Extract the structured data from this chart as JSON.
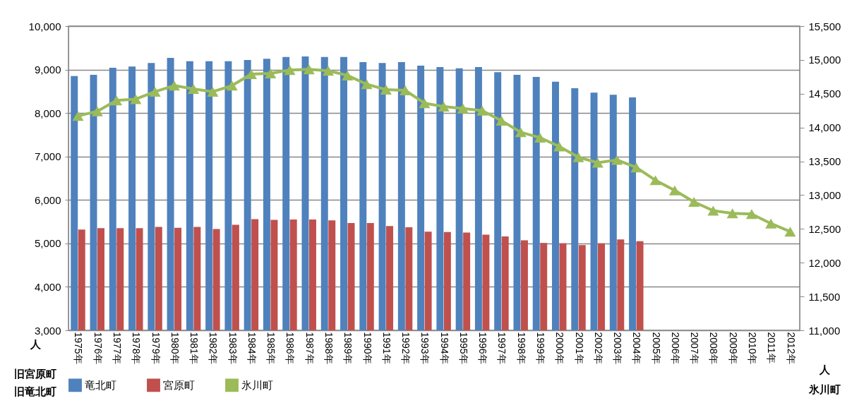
{
  "chart_data": {
    "type": "bar",
    "ylabel": "人",
    "y2label": "人",
    "annotations": [
      "旧宮原町",
      "旧竜北町",
      "氷川町"
    ],
    "categories": [
      "1975年",
      "1976年",
      "1977年",
      "1978年",
      "1979年",
      "1980年",
      "1981年",
      "1982年",
      "1983年",
      "1984年",
      "1985年",
      "1986年",
      "1987年",
      "1988年",
      "1989年",
      "1990年",
      "1991年",
      "1992年",
      "1993年",
      "1994年",
      "1995年",
      "1996年",
      "1997年",
      "1998年",
      "1999年",
      "2000年",
      "2001年",
      "2002年",
      "2003年",
      "2004年",
      "2005年",
      "2006年",
      "2007年",
      "2008年",
      "2009年",
      "2010年",
      "2011年",
      "2012年"
    ],
    "series": [
      {
        "name": "竜北町",
        "color": "#4f81bd",
        "values": [
          8850,
          8880,
          9040,
          9070,
          9150,
          9270,
          9190,
          9190,
          9190,
          9220,
          9250,
          9290,
          9300,
          9290,
          9290,
          9170,
          9150,
          9170,
          9090,
          9060,
          9030,
          9060,
          8940,
          8880,
          8830,
          8720,
          8570,
          8470,
          8420,
          8360,
          null,
          null,
          null,
          null,
          null,
          null,
          null,
          null
        ]
      },
      {
        "name": "宮原町",
        "color": "#c0504d",
        "values": [
          5320,
          5350,
          5350,
          5350,
          5380,
          5360,
          5380,
          5330,
          5430,
          5560,
          5540,
          5550,
          5550,
          5530,
          5470,
          5470,
          5400,
          5370,
          5270,
          5260,
          5250,
          5200,
          5160,
          5070,
          5010,
          5000,
          4960,
          5000,
          5090,
          5050,
          null,
          null,
          null,
          null,
          null,
          null,
          null,
          null
        ]
      },
      {
        "name": "氷川町",
        "type": "line",
        "axis": "y2",
        "color": "#9bbb59",
        "marker": "triangle",
        "values": [
          14170,
          14240,
          14400,
          14420,
          14530,
          14620,
          14570,
          14530,
          14620,
          14790,
          14800,
          14850,
          14860,
          14840,
          14770,
          14640,
          14560,
          14550,
          14360,
          14310,
          14280,
          14250,
          14100,
          13930,
          13850,
          13720,
          13560,
          13480,
          13520,
          13410,
          13220,
          13070,
          12900,
          12770,
          12730,
          12720,
          12580,
          12460
        ]
      }
    ],
    "ylim": [
      3000,
      10000
    ],
    "yticks": [
      {
        "value": 3000,
        "label": "3,000"
      },
      {
        "value": 4000,
        "label": "4,000"
      },
      {
        "value": 5000,
        "label": "5,000"
      },
      {
        "value": 6000,
        "label": "6,000"
      },
      {
        "value": 7000,
        "label": "7,000"
      },
      {
        "value": 8000,
        "label": "8,000"
      },
      {
        "value": 9000,
        "label": "9,000"
      },
      {
        "value": 10000,
        "label": "10,000"
      }
    ],
    "y2lim": [
      11000,
      15500
    ],
    "y2ticks": [
      {
        "value": 11000,
        "label": "11,000"
      },
      {
        "value": 11500,
        "label": "11,500"
      },
      {
        "value": 12000,
        "label": "12,000"
      },
      {
        "value": 12500,
        "label": "12,500"
      },
      {
        "value": 13000,
        "label": "13,000"
      },
      {
        "value": 13500,
        "label": "13,500"
      },
      {
        "value": 14000,
        "label": "14,000"
      },
      {
        "value": 14500,
        "label": "14,500"
      },
      {
        "value": 15000,
        "label": "15,000"
      },
      {
        "value": 15500,
        "label": "15,500"
      }
    ],
    "grid": "y",
    "legend": "bottom"
  }
}
